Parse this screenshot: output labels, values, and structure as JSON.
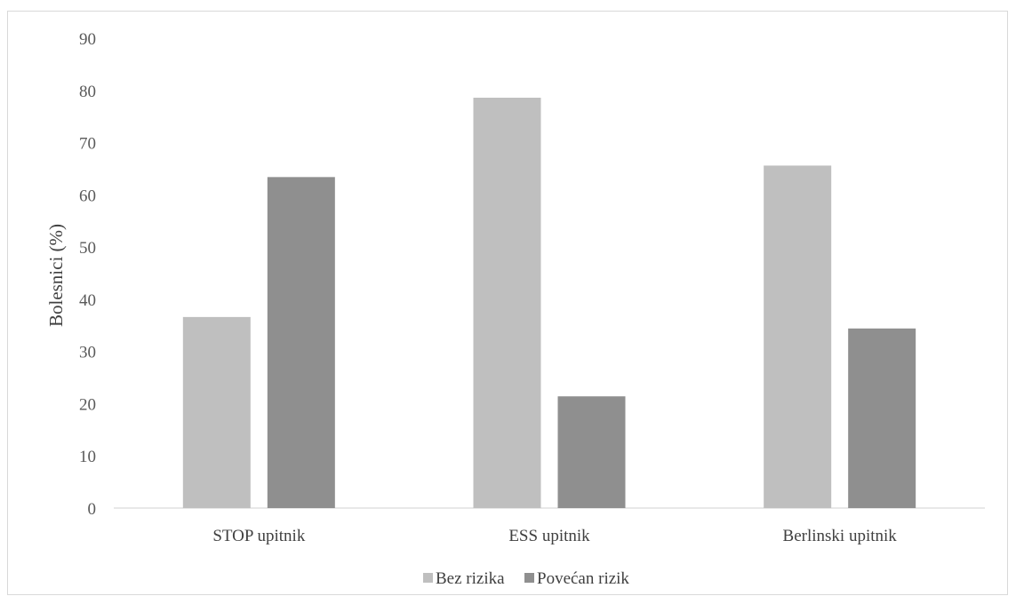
{
  "chart_data": {
    "type": "bar",
    "categories": [
      "STOP upitnik",
      "ESS upitnik",
      "Berlinski upitnik"
    ],
    "series": [
      {
        "name": "Bez rizika",
        "values": [
          36.6,
          78.6,
          65.6
        ],
        "color": "#bfbfbf"
      },
      {
        "name": "Povećan rizik",
        "values": [
          63.4,
          21.4,
          34.4
        ],
        "color": "#8f8f8f"
      }
    ],
    "ylabel": "Bolesnici (%)",
    "xlabel": "",
    "ylim": [
      0,
      90
    ],
    "yticks": [
      "0",
      "10",
      "20",
      "30",
      "40",
      "50",
      "60",
      "70",
      "80",
      "90"
    ],
    "grid": false,
    "legend_position": "bottom"
  }
}
